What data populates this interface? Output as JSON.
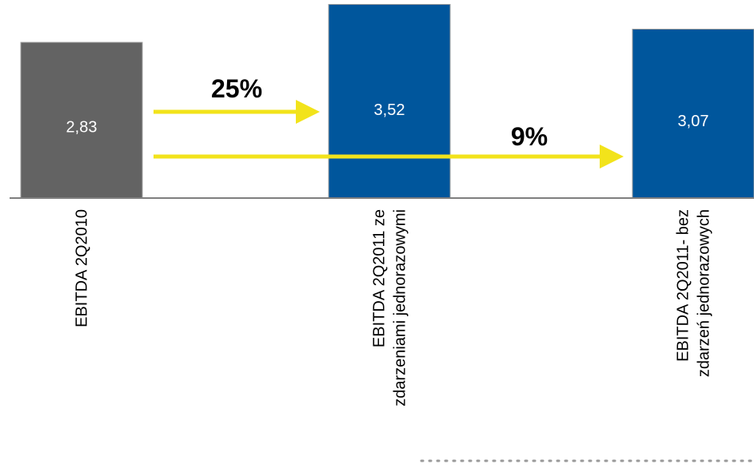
{
  "chart_data": {
    "type": "bar",
    "categories": [
      [
        "EBITDA  2Q2010"
      ],
      [
        "EBITDA  2Q2011 ze",
        "zdarzeniami jednorazowymi"
      ],
      [
        "EBITDA  2Q2011- bez",
        "zdarzeń jednorazowych"
      ]
    ],
    "values": [
      2.83,
      3.52,
      3.07
    ],
    "value_labels": [
      "2,83",
      "3,52",
      "3,07"
    ],
    "colors": [
      "#636363",
      "#00569C",
      "#00569C"
    ],
    "arrow_color": "#F2E31B",
    "annotations": [
      {
        "text": "25%",
        "from": 0,
        "to": 1
      },
      {
        "text": "9%",
        "from": 0,
        "to": 2
      }
    ],
    "title": "",
    "xlabel": "",
    "ylabel": "",
    "grid": false,
    "legend": false
  }
}
